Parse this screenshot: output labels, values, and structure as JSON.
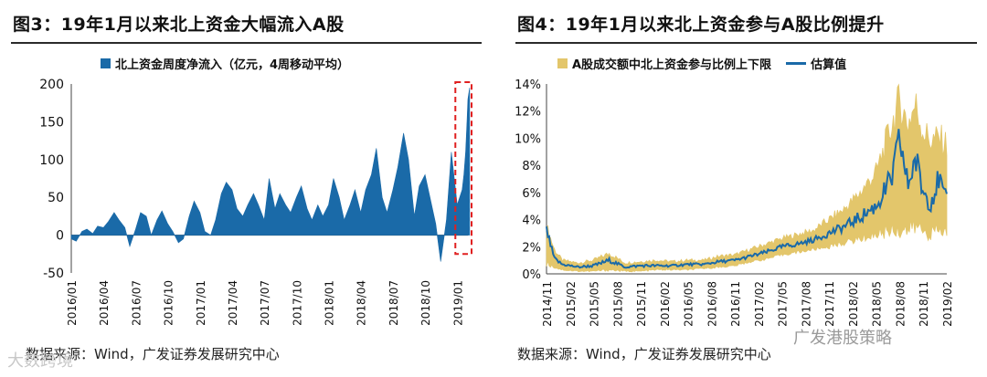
{
  "left_panel": {
    "title": "图3：19年1月以来北上资金大幅流入A股",
    "source": "数据来源：Wind，广发证券发展研究中心"
  },
  "right_panel": {
    "title": "图4：19年1月以来北上资金参与A股比例提升",
    "source": "数据来源：Wind，广发证券发展研究中心"
  },
  "watermarks": {
    "bottom_left": "大数跨境",
    "bottom_right": "广发港股策略"
  },
  "colors": {
    "blue": "#1a6aa8",
    "gold": "#e3c66b",
    "highlight": "#e02020"
  },
  "chart_data": [
    {
      "type": "area",
      "legend": [
        "北上资金周度净流入（亿元，4周移动平均）"
      ],
      "ylim": [
        -50,
        200
      ],
      "yticks": [
        -50,
        0,
        50,
        100,
        150,
        200
      ],
      "xlim": [
        "2016-01",
        "2019-02"
      ],
      "xticks": [
        "2016/01",
        "2016/04",
        "2016/07",
        "2016/10",
        "2017/01",
        "2017/04",
        "2017/07",
        "2017/10",
        "2018/01",
        "2018/04",
        "2018/07",
        "2018/10",
        "2019/01"
      ],
      "highlight_box": {
        "x": [
          "2019-01",
          "2019-02"
        ],
        "y": [
          -25,
          200
        ]
      },
      "series": [
        {
          "name": "北上资金周度净流入（亿元，4周移动平均）",
          "points": [
            [
              "2016-01-01",
              -5
            ],
            [
              "2016-01-15",
              -8
            ],
            [
              "2016-02-01",
              5
            ],
            [
              "2016-02-15",
              8
            ],
            [
              "2016-03-01",
              2
            ],
            [
              "2016-03-15",
              12
            ],
            [
              "2016-04-01",
              10
            ],
            [
              "2016-04-15",
              18
            ],
            [
              "2016-05-01",
              30
            ],
            [
              "2016-05-15",
              20
            ],
            [
              "2016-06-01",
              10
            ],
            [
              "2016-06-15",
              -15
            ],
            [
              "2016-07-01",
              8
            ],
            [
              "2016-07-15",
              30
            ],
            [
              "2016-08-01",
              25
            ],
            [
              "2016-08-15",
              0
            ],
            [
              "2016-09-01",
              20
            ],
            [
              "2016-09-15",
              32
            ],
            [
              "2016-10-01",
              15
            ],
            [
              "2016-10-15",
              5
            ],
            [
              "2016-11-01",
              -10
            ],
            [
              "2016-11-15",
              -5
            ],
            [
              "2016-12-01",
              25
            ],
            [
              "2016-12-15",
              45
            ],
            [
              "2017-01-01",
              30
            ],
            [
              "2017-01-15",
              5
            ],
            [
              "2017-02-01",
              0
            ],
            [
              "2017-02-15",
              20
            ],
            [
              "2017-03-01",
              55
            ],
            [
              "2017-03-15",
              70
            ],
            [
              "2017-04-01",
              60
            ],
            [
              "2017-04-15",
              35
            ],
            [
              "2017-05-01",
              25
            ],
            [
              "2017-05-15",
              40
            ],
            [
              "2017-06-01",
              55
            ],
            [
              "2017-06-15",
              40
            ],
            [
              "2017-07-01",
              20
            ],
            [
              "2017-07-15",
              75
            ],
            [
              "2017-08-01",
              35
            ],
            [
              "2017-08-15",
              55
            ],
            [
              "2017-09-01",
              40
            ],
            [
              "2017-09-15",
              30
            ],
            [
              "2017-10-01",
              50
            ],
            [
              "2017-10-15",
              65
            ],
            [
              "2017-11-01",
              35
            ],
            [
              "2017-11-15",
              20
            ],
            [
              "2017-12-01",
              40
            ],
            [
              "2017-12-15",
              25
            ],
            [
              "2018-01-01",
              40
            ],
            [
              "2018-01-15",
              75
            ],
            [
              "2018-02-01",
              50
            ],
            [
              "2018-02-15",
              20
            ],
            [
              "2018-03-01",
              40
            ],
            [
              "2018-03-15",
              60
            ],
            [
              "2018-04-01",
              30
            ],
            [
              "2018-04-15",
              60
            ],
            [
              "2018-05-01",
              80
            ],
            [
              "2018-05-15",
              115
            ],
            [
              "2018-06-01",
              50
            ],
            [
              "2018-06-15",
              30
            ],
            [
              "2018-07-01",
              60
            ],
            [
              "2018-07-15",
              90
            ],
            [
              "2018-08-01",
              135
            ],
            [
              "2018-08-15",
              100
            ],
            [
              "2018-09-01",
              25
            ],
            [
              "2018-09-15",
              65
            ],
            [
              "2018-10-01",
              80
            ],
            [
              "2018-10-15",
              50
            ],
            [
              "2018-11-01",
              15
            ],
            [
              "2018-11-15",
              -35
            ],
            [
              "2018-12-01",
              20
            ],
            [
              "2018-12-15",
              110
            ],
            [
              "2019-01-01",
              40
            ],
            [
              "2019-01-15",
              60
            ],
            [
              "2019-01-20",
              80
            ],
            [
              "2019-01-25",
              110
            ],
            [
              "2019-01-29",
              150
            ],
            [
              "2019-02-01",
              180
            ],
            [
              "2019-02-06",
              195
            ]
          ]
        }
      ]
    },
    {
      "type": "area",
      "legend": [
        "A股成交额中北上资金参与比例上下限",
        "估算值"
      ],
      "ylim": [
        0,
        14
      ],
      "yticks": [
        "0%",
        "2%",
        "4%",
        "6%",
        "8%",
        "10%",
        "12%",
        "14%"
      ],
      "xlim": [
        "2014-11",
        "2019-02"
      ],
      "xticks": [
        "2014/11",
        "2015/02",
        "2015/05",
        "2015/08",
        "2015/11",
        "2016/02",
        "2016/05",
        "2016/08",
        "2016/11",
        "2017/02",
        "2017/05",
        "2017/08",
        "2017/11",
        "2018/02",
        "2018/05",
        "2018/08",
        "2018/11",
        "2019/02"
      ],
      "series": [
        {
          "name": "A股成交额中北上资金参与比例上下限",
          "upper": [
            [
              "2014-11",
              3.5
            ],
            [
              "2014-12",
              1.8
            ],
            [
              "2015-01",
              1.0
            ],
            [
              "2015-03",
              0.8
            ],
            [
              "2015-05",
              1.0
            ],
            [
              "2015-07",
              1.5
            ],
            [
              "2015-09",
              0.8
            ],
            [
              "2015-11",
              0.9
            ],
            [
              "2016-01",
              1.0
            ],
            [
              "2016-03",
              0.9
            ],
            [
              "2016-05",
              1.0
            ],
            [
              "2016-07",
              1.0
            ],
            [
              "2016-09",
              1.3
            ],
            [
              "2016-11",
              1.4
            ],
            [
              "2017-01",
              1.8
            ],
            [
              "2017-03",
              2.2
            ],
            [
              "2017-05",
              2.6
            ],
            [
              "2017-07",
              2.9
            ],
            [
              "2017-09",
              3.2
            ],
            [
              "2017-11",
              4.0
            ],
            [
              "2018-01",
              4.8
            ],
            [
              "2018-03",
              6.0
            ],
            [
              "2018-05",
              7.5
            ],
            [
              "2018-07",
              11.0
            ],
            [
              "2018-08",
              12.8
            ],
            [
              "2018-09",
              11.0
            ],
            [
              "2018-10",
              12.5
            ],
            [
              "2018-11",
              10.5
            ],
            [
              "2018-12",
              9.8
            ],
            [
              "2019-01",
              10.0
            ],
            [
              "2019-02",
              9.5
            ]
          ],
          "lower": [
            [
              "2014-11",
              0.8
            ],
            [
              "2014-12",
              0.5
            ],
            [
              "2015-01",
              0.3
            ],
            [
              "2015-03",
              0.2
            ],
            [
              "2015-05",
              0.2
            ],
            [
              "2015-07",
              0.3
            ],
            [
              "2015-09",
              0.2
            ],
            [
              "2015-11",
              0.2
            ],
            [
              "2016-01",
              0.3
            ],
            [
              "2016-03",
              0.3
            ],
            [
              "2016-05",
              0.3
            ],
            [
              "2016-07",
              0.4
            ],
            [
              "2016-09",
              0.5
            ],
            [
              "2016-11",
              0.6
            ],
            [
              "2017-01",
              0.9
            ],
            [
              "2017-03",
              1.1
            ],
            [
              "2017-05",
              1.4
            ],
            [
              "2017-07",
              1.6
            ],
            [
              "2017-09",
              1.8
            ],
            [
              "2017-11",
              2.0
            ],
            [
              "2018-01",
              2.3
            ],
            [
              "2018-03",
              2.6
            ],
            [
              "2018-05",
              2.9
            ],
            [
              "2018-07",
              3.3
            ],
            [
              "2018-08",
              3.3
            ],
            [
              "2018-09",
              3.2
            ],
            [
              "2018-10",
              3.5
            ],
            [
              "2018-11",
              3.2
            ],
            [
              "2018-12",
              3.0
            ],
            [
              "2019-01",
              3.2
            ],
            [
              "2019-02",
              3.0
            ]
          ]
        },
        {
          "name": "估算值",
          "points": [
            [
              "2014-11",
              3.2
            ],
            [
              "2014-12",
              1.1
            ],
            [
              "2015-01",
              0.7
            ],
            [
              "2015-03",
              0.5
            ],
            [
              "2015-05",
              0.6
            ],
            [
              "2015-07",
              1.0
            ],
            [
              "2015-09",
              0.5
            ],
            [
              "2015-11",
              0.6
            ],
            [
              "2016-01",
              0.6
            ],
            [
              "2016-03",
              0.6
            ],
            [
              "2016-05",
              0.7
            ],
            [
              "2016-07",
              0.7
            ],
            [
              "2016-09",
              0.9
            ],
            [
              "2016-11",
              1.0
            ],
            [
              "2017-01",
              1.3
            ],
            [
              "2017-03",
              1.6
            ],
            [
              "2017-05",
              2.0
            ],
            [
              "2017-07",
              2.2
            ],
            [
              "2017-09",
              2.5
            ],
            [
              "2017-11",
              3.0
            ],
            [
              "2018-01",
              3.5
            ],
            [
              "2018-03",
              4.2
            ],
            [
              "2018-05",
              5.0
            ],
            [
              "2018-07",
              7.0
            ],
            [
              "2018-08",
              10.0
            ],
            [
              "2018-09",
              6.5
            ],
            [
              "2018-10",
              8.5
            ],
            [
              "2018-11",
              6.0
            ],
            [
              "2018-12",
              5.5
            ],
            [
              "2019-01",
              7.0
            ],
            [
              "2019-02",
              5.0
            ]
          ]
        }
      ]
    }
  ]
}
